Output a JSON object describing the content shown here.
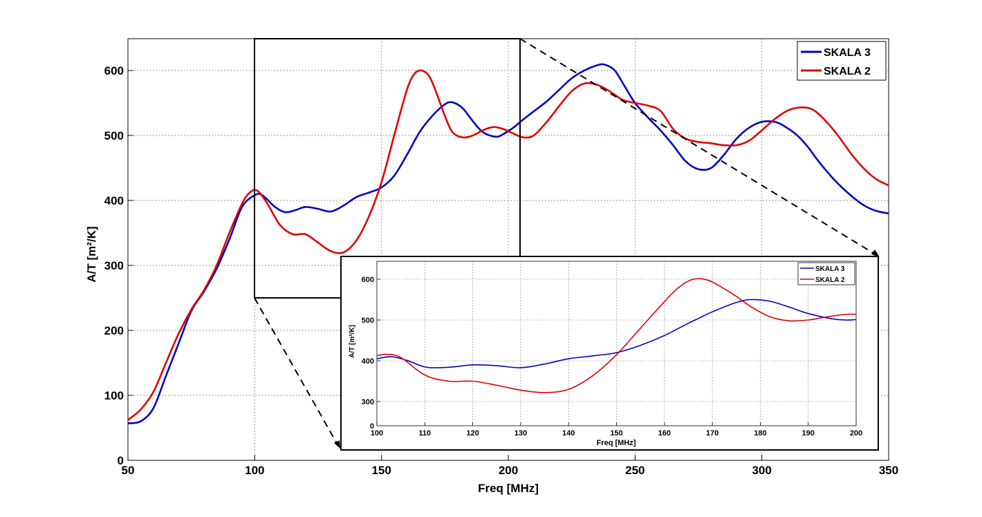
{
  "chart_data": [
    {
      "type": "line",
      "title": "",
      "xlabel": "Freq [MHz]",
      "ylabel": "A/T [m²/K]",
      "xlim": [
        50,
        350
      ],
      "ylim": [
        0,
        650
      ],
      "xticks": [
        50,
        100,
        150,
        200,
        250,
        300,
        350
      ],
      "yticks": [
        0,
        100,
        200,
        300,
        400,
        500,
        600
      ],
      "grid": true,
      "legend_position": "top-right",
      "series": [
        {
          "name": "SKALA 3",
          "color": "#0000c0",
          "x": [
            50,
            55,
            60,
            65,
            70,
            75,
            80,
            85,
            90,
            95,
            100,
            103,
            108,
            112,
            116,
            120,
            125,
            130,
            135,
            140,
            145,
            150,
            155,
            160,
            165,
            170,
            175,
            178,
            182,
            186,
            190,
            195,
            198,
            202,
            206,
            210,
            215,
            220,
            225,
            230,
            235,
            238,
            242,
            246,
            250,
            255,
            260,
            265,
            270,
            275,
            280,
            285,
            290,
            295,
            300,
            305,
            309,
            314,
            318,
            322,
            326,
            330,
            335,
            340,
            345,
            350
          ],
          "y": [
            57,
            60,
            80,
            130,
            180,
            230,
            260,
            295,
            340,
            390,
            408,
            408,
            390,
            382,
            385,
            390,
            387,
            383,
            392,
            405,
            412,
            420,
            438,
            470,
            505,
            530,
            548,
            551,
            542,
            522,
            505,
            498,
            502,
            512,
            525,
            537,
            552,
            570,
            588,
            600,
            608,
            609,
            600,
            575,
            550,
            528,
            508,
            485,
            460,
            448,
            450,
            470,
            495,
            512,
            521,
            521,
            514,
            500,
            483,
            462,
            443,
            426,
            408,
            393,
            384,
            380
          ]
        },
        {
          "name": "SKALA 2",
          "color": "#dd0000",
          "x": [
            50,
            55,
            60,
            65,
            70,
            75,
            80,
            85,
            90,
            95,
            98,
            101,
            105,
            110,
            115,
            120,
            125,
            130,
            135,
            140,
            145,
            150,
            155,
            160,
            163,
            166,
            169,
            172,
            175,
            178,
            182,
            186,
            190,
            194,
            198,
            202,
            206,
            210,
            215,
            220,
            225,
            230,
            235,
            240,
            245,
            250,
            255,
            260,
            265,
            270,
            275,
            280,
            285,
            290,
            295,
            300,
            305,
            310,
            315,
            320,
            325,
            330,
            335,
            340,
            345,
            350
          ],
          "y": [
            62,
            78,
            105,
            150,
            195,
            232,
            262,
            300,
            350,
            395,
            412,
            415,
            395,
            362,
            348,
            348,
            335,
            322,
            320,
            338,
            375,
            428,
            500,
            570,
            595,
            600,
            590,
            562,
            530,
            505,
            497,
            500,
            508,
            513,
            510,
            503,
            497,
            500,
            520,
            545,
            568,
            580,
            578,
            568,
            555,
            550,
            546,
            538,
            510,
            495,
            490,
            488,
            485,
            485,
            492,
            508,
            525,
            538,
            543,
            540,
            523,
            500,
            473,
            450,
            433,
            423
          ]
        }
      ]
    },
    {
      "type": "line",
      "title": "",
      "xlabel": "Freq [MHz]",
      "ylabel": "A/T [m²/K]",
      "xlim": [
        100,
        200
      ],
      "ylim": [
        250,
        640
      ],
      "xticks": [
        100,
        110,
        120,
        130,
        140,
        150,
        160,
        170,
        180,
        190,
        200
      ],
      "yticks": [
        300,
        400,
        500,
        600
      ],
      "ytick_labels": [
        "300",
        "400",
        "500",
        "600"
      ],
      "extra_ytick_label": "0",
      "grid": true,
      "legend_position": "top-right",
      "series": [
        {
          "name": "SKALA 3",
          "color": "#0000c0",
          "x": [
            100,
            103,
            106,
            110,
            113,
            116,
            120,
            125,
            130,
            135,
            140,
            145,
            150,
            155,
            160,
            165,
            170,
            175,
            178,
            182,
            186,
            190,
            195,
            198,
            200
          ],
          "y": [
            405,
            410,
            402,
            385,
            383,
            385,
            390,
            388,
            383,
            392,
            405,
            412,
            420,
            438,
            462,
            492,
            520,
            543,
            550,
            546,
            532,
            516,
            503,
            500,
            501
          ],
          "note_y_axis_pixel_anchor": "300 and 600 ticks"
        },
        {
          "name": "SKALA 2",
          "color": "#dd0000",
          "x": [
            100,
            102,
            105,
            110,
            115,
            120,
            125,
            130,
            135,
            140,
            145,
            150,
            155,
            160,
            163,
            166,
            169,
            172,
            175,
            178,
            182,
            186,
            190,
            194,
            198,
            200
          ],
          "y": [
            412,
            416,
            408,
            365,
            350,
            350,
            340,
            328,
            322,
            330,
            363,
            415,
            480,
            545,
            580,
            600,
            598,
            580,
            558,
            533,
            508,
            498,
            500,
            508,
            514,
            514
          ]
        }
      ]
    }
  ]
}
